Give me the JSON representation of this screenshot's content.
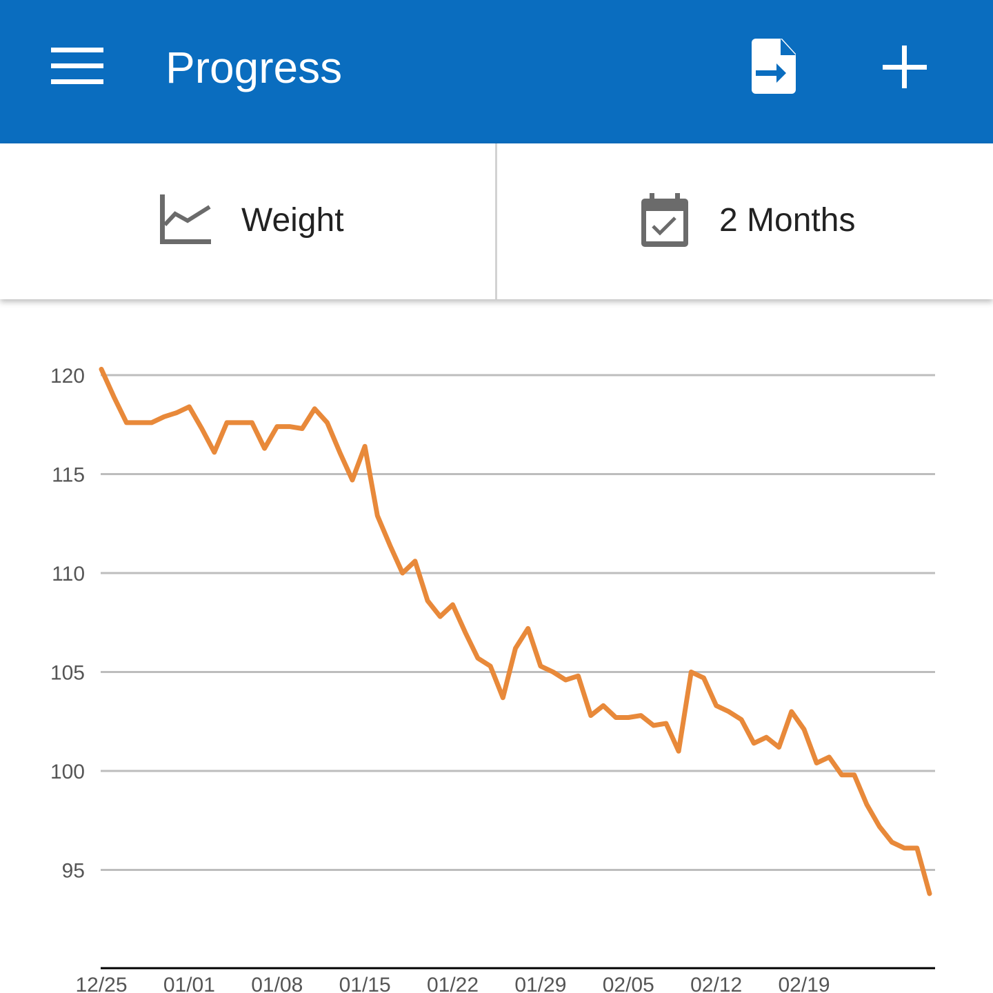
{
  "header": {
    "title": "Progress",
    "menu_icon": "menu-icon",
    "export_icon": "file-export-icon",
    "add_icon": "plus-icon",
    "background_color": "#0a6dbf"
  },
  "filters": {
    "metric": {
      "label": "Weight",
      "icon": "line-chart-icon"
    },
    "range": {
      "label": "2 Months",
      "icon": "calendar-check-icon"
    }
  },
  "chart_data": {
    "type": "line",
    "title": "",
    "xlabel": "",
    "ylabel": "",
    "ylim": [
      90,
      120
    ],
    "yticks": [
      120,
      115,
      110,
      105,
      100,
      95
    ],
    "xtick_labels": [
      "12/25",
      "01/01",
      "01/08",
      "01/15",
      "01/22",
      "01/29",
      "02/05",
      "02/12",
      "02/19"
    ],
    "grid": true,
    "line_color": "#e8893a",
    "series": [
      {
        "values": [
          120.3,
          118.9,
          117.6,
          117.6,
          117.6,
          117.9,
          118.1,
          118.4,
          117.3,
          116.1,
          117.6,
          117.6,
          117.6,
          116.3,
          117.4,
          117.4,
          117.3,
          118.3,
          117.6,
          116.1,
          114.7,
          116.4,
          112.9,
          111.4,
          110.0,
          110.6,
          108.6,
          107.8,
          108.4,
          107.0,
          105.7,
          105.3,
          103.7,
          106.2,
          107.2,
          105.3,
          105.0,
          104.6,
          104.8,
          102.8,
          103.3,
          102.7,
          102.7,
          102.8,
          102.3,
          102.4,
          101.0,
          105.0,
          104.7,
          103.3,
          103.0,
          102.6,
          101.4,
          101.7,
          101.2,
          103.0,
          102.1,
          100.4,
          100.7,
          99.8,
          99.8,
          98.3,
          97.2,
          96.4,
          96.1,
          96.1,
          93.8
        ]
      }
    ]
  }
}
